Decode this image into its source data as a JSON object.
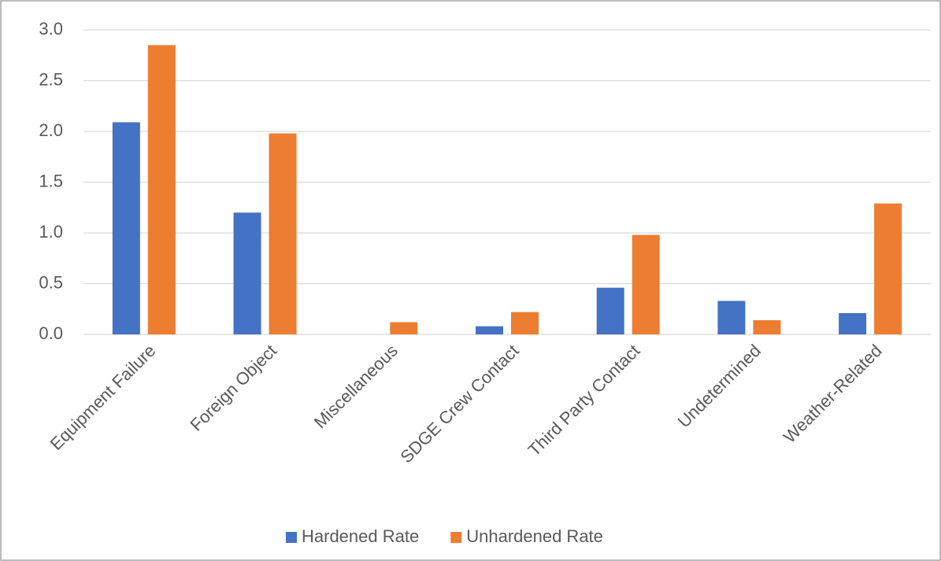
{
  "chart_data": {
    "type": "bar",
    "categories": [
      "Equipment Failure",
      "Foreign Object",
      "Miscellaneous",
      "SDGE Crew Contact",
      "Third Party Contact",
      "Undetermined",
      "Weather-Related"
    ],
    "series": [
      {
        "name": "Hardened Rate",
        "color": "#4472c4",
        "values": [
          2.09,
          1.2,
          0,
          0.08,
          0.46,
          0.33,
          0.21
        ]
      },
      {
        "name": "Unhardened Rate",
        "color": "#ed7d31",
        "values": [
          2.85,
          1.98,
          0.12,
          0.22,
          0.98,
          0.14,
          1.29
        ]
      }
    ],
    "ylim": [
      0,
      3
    ],
    "yticks": [
      {
        "value": 0,
        "label": "0.0"
      },
      {
        "value": 0.5,
        "label": "0.5"
      },
      {
        "value": 1,
        "label": "1.0"
      },
      {
        "value": 1.5,
        "label": "1.5"
      },
      {
        "value": 2,
        "label": "2.0"
      },
      {
        "value": 2.5,
        "label": "2.5"
      },
      {
        "value": 3,
        "label": "3.0"
      }
    ],
    "grid": true,
    "legend": "bottom"
  }
}
